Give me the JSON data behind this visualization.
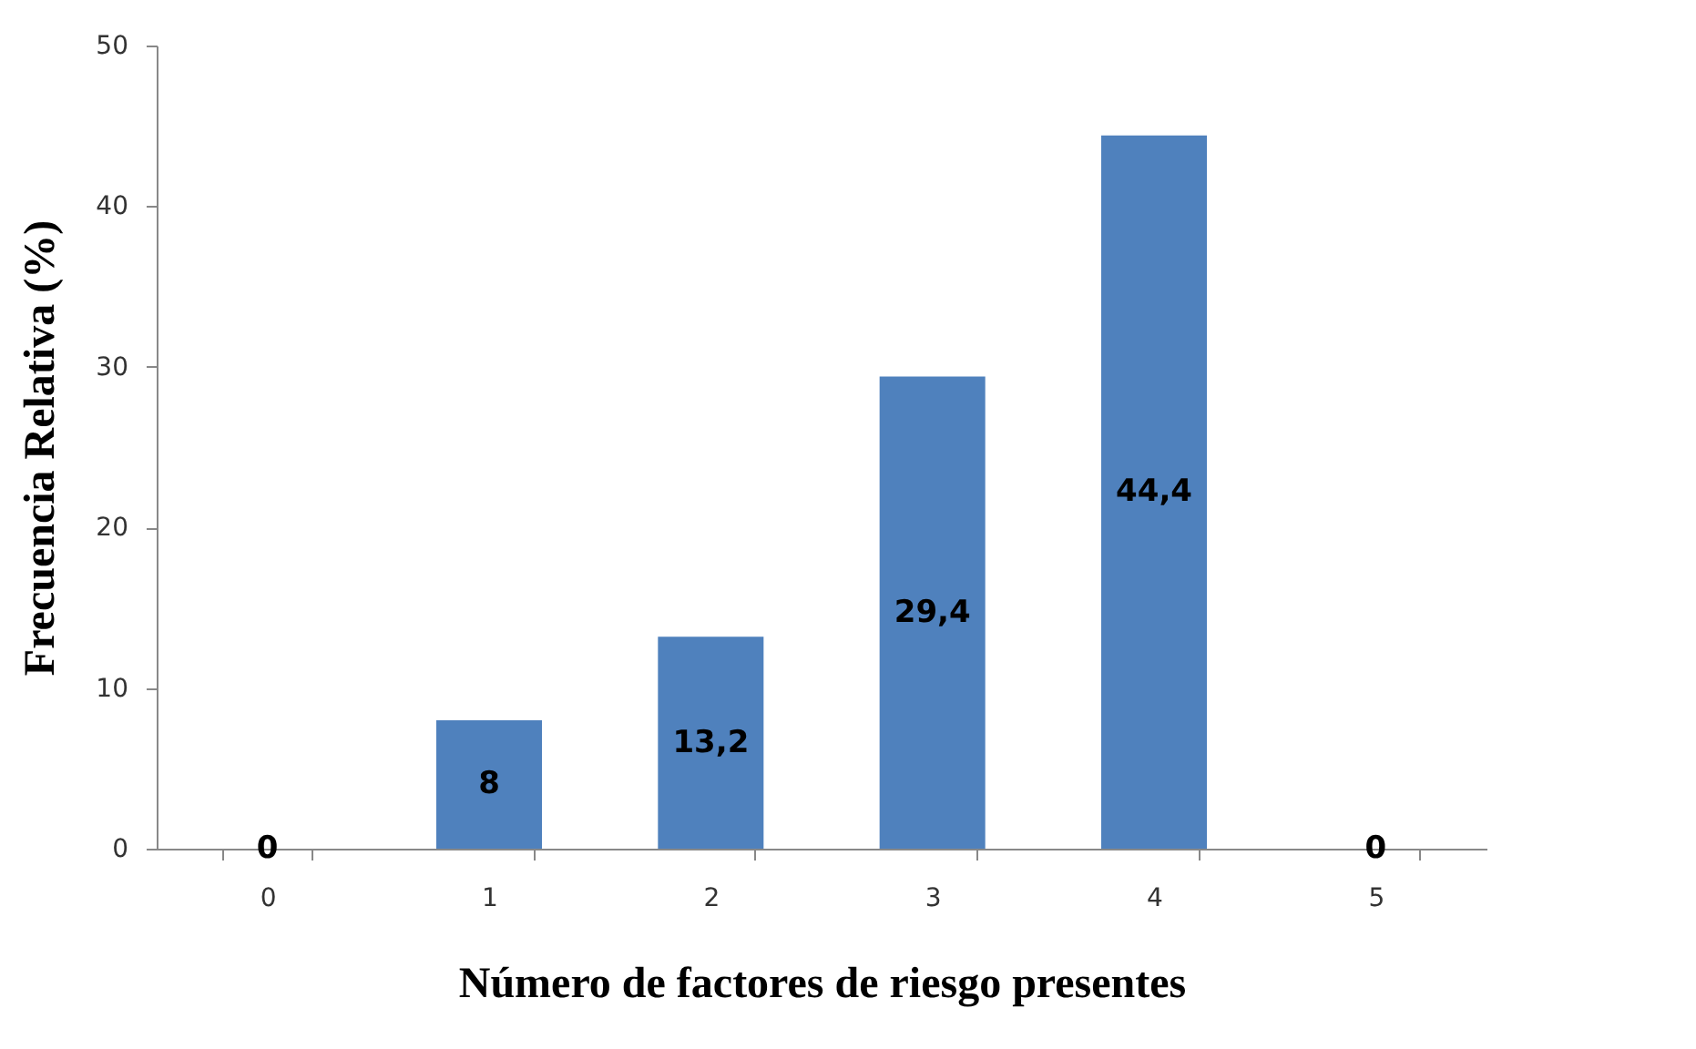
{
  "chart_data": {
    "type": "bar",
    "xlabel": "Número de factores de riesgo presentes",
    "ylabel": "Frecuencia Relativa (%)",
    "categories": [
      "0",
      "1",
      "2",
      "3",
      "4",
      "5"
    ],
    "values": [
      0,
      8,
      13.2,
      29.4,
      44.4,
      0
    ],
    "value_labels": [
      "0",
      "8",
      "13,2",
      "29,4",
      "44,4",
      "0"
    ],
    "color": "#4f81bd",
    "ylim": [
      0,
      50
    ],
    "yticks": [
      0,
      10,
      20,
      30,
      40,
      50
    ]
  }
}
